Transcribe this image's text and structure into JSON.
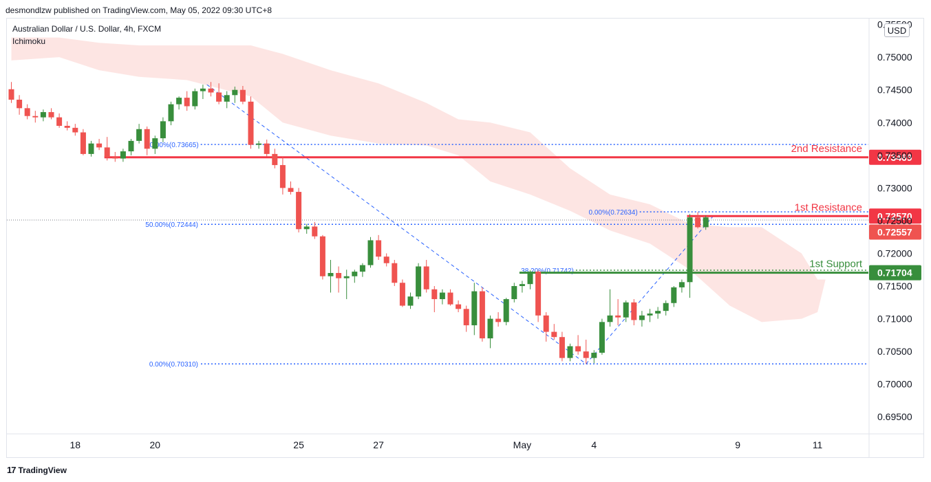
{
  "header": {
    "published": "desmondlzw published on TradingView.com, May 05, 2022 09:30 UTC+8",
    "symbol": "Australian Dollar / U.S. Dollar, 4h, FXCM",
    "indicator": "Ichimoku",
    "currency": "USD"
  },
  "footer": {
    "logo_mark": "17",
    "logo_text": "TradingView"
  },
  "colors": {
    "up": "#388e3c",
    "down": "#ef5350",
    "cloud": "#fde2e0",
    "resistance": "#f23645",
    "support": "#388e3c",
    "fib": "#2962ff",
    "text": "#131722"
  },
  "chart_data": {
    "type": "candlestick",
    "ylim": [
      0.6925,
      0.7558
    ],
    "y_ticks": [
      "0.75000",
      "0.74500",
      "0.74000",
      "0.73500",
      "0.73000",
      "0.72500",
      "0.72000",
      "0.71500",
      "0.71000",
      "0.70500",
      "0.70000",
      "0.69500"
    ],
    "x_ticks": [
      {
        "label": "18",
        "bar": 8
      },
      {
        "label": "20",
        "bar": 18
      },
      {
        "label": "25",
        "bar": 36
      },
      {
        "label": "27",
        "bar": 46
      },
      {
        "label": "May",
        "bar": 64
      },
      {
        "label": "4",
        "bar": 73
      },
      {
        "label": "9",
        "bar": 91
      },
      {
        "label": "11",
        "bar": 101
      }
    ],
    "candles": [
      {
        "o": 0.7451,
        "h": 0.7462,
        "l": 0.743,
        "c": 0.7435
      },
      {
        "o": 0.7435,
        "h": 0.7442,
        "l": 0.7412,
        "c": 0.7422
      },
      {
        "o": 0.7422,
        "h": 0.7428,
        "l": 0.7405,
        "c": 0.741
      },
      {
        "o": 0.741,
        "h": 0.7418,
        "l": 0.74,
        "c": 0.7408
      },
      {
        "o": 0.7408,
        "h": 0.742,
        "l": 0.7402,
        "c": 0.7416
      },
      {
        "o": 0.7416,
        "h": 0.7422,
        "l": 0.7405,
        "c": 0.7408
      },
      {
        "o": 0.7408,
        "h": 0.7414,
        "l": 0.7392,
        "c": 0.7395
      },
      {
        "o": 0.7395,
        "h": 0.7402,
        "l": 0.7388,
        "c": 0.7392
      },
      {
        "o": 0.7392,
        "h": 0.7398,
        "l": 0.738,
        "c": 0.7385
      },
      {
        "o": 0.7385,
        "h": 0.739,
        "l": 0.735,
        "c": 0.7352
      },
      {
        "o": 0.7352,
        "h": 0.7372,
        "l": 0.7348,
        "c": 0.7368
      },
      {
        "o": 0.7368,
        "h": 0.7375,
        "l": 0.7358,
        "c": 0.7362
      },
      {
        "o": 0.7362,
        "h": 0.7378,
        "l": 0.7342,
        "c": 0.7347
      },
      {
        "o": 0.7347,
        "h": 0.7355,
        "l": 0.734,
        "c": 0.7345
      },
      {
        "o": 0.7345,
        "h": 0.736,
        "l": 0.734,
        "c": 0.7356
      },
      {
        "o": 0.7356,
        "h": 0.7375,
        "l": 0.735,
        "c": 0.7372
      },
      {
        "o": 0.7372,
        "h": 0.7398,
        "l": 0.7368,
        "c": 0.739
      },
      {
        "o": 0.739,
        "h": 0.7394,
        "l": 0.735,
        "c": 0.736
      },
      {
        "o": 0.736,
        "h": 0.738,
        "l": 0.7352,
        "c": 0.7376
      },
      {
        "o": 0.7376,
        "h": 0.7408,
        "l": 0.737,
        "c": 0.7402
      },
      {
        "o": 0.7402,
        "h": 0.7432,
        "l": 0.7396,
        "c": 0.7428
      },
      {
        "o": 0.7428,
        "h": 0.744,
        "l": 0.742,
        "c": 0.7438
      },
      {
        "o": 0.7438,
        "h": 0.7448,
        "l": 0.7418,
        "c": 0.7425
      },
      {
        "o": 0.7425,
        "h": 0.7452,
        "l": 0.742,
        "c": 0.7448
      },
      {
        "o": 0.7448,
        "h": 0.7458,
        "l": 0.7436,
        "c": 0.7452
      },
      {
        "o": 0.7452,
        "h": 0.7462,
        "l": 0.744,
        "c": 0.7446
      },
      {
        "o": 0.7446,
        "h": 0.746,
        "l": 0.7428,
        "c": 0.7432
      },
      {
        "o": 0.7432,
        "h": 0.7448,
        "l": 0.7422,
        "c": 0.7442
      },
      {
        "o": 0.7442,
        "h": 0.7455,
        "l": 0.743,
        "c": 0.745
      },
      {
        "o": 0.745,
        "h": 0.7456,
        "l": 0.7428,
        "c": 0.7432
      },
      {
        "o": 0.7432,
        "h": 0.744,
        "l": 0.736,
        "c": 0.7366
      },
      {
        "o": 0.7366,
        "h": 0.7372,
        "l": 0.736,
        "c": 0.7368
      },
      {
        "o": 0.7368,
        "h": 0.7374,
        "l": 0.7348,
        "c": 0.7352
      },
      {
        "o": 0.7352,
        "h": 0.736,
        "l": 0.733,
        "c": 0.7335
      },
      {
        "o": 0.7335,
        "h": 0.7348,
        "l": 0.729,
        "c": 0.73
      },
      {
        "o": 0.73,
        "h": 0.731,
        "l": 0.729,
        "c": 0.7294
      },
      {
        "o": 0.7294,
        "h": 0.73,
        "l": 0.7232,
        "c": 0.7237
      },
      {
        "o": 0.7237,
        "h": 0.7245,
        "l": 0.723,
        "c": 0.7241
      },
      {
        "o": 0.7241,
        "h": 0.7248,
        "l": 0.7222,
        "c": 0.7226
      },
      {
        "o": 0.7226,
        "h": 0.7228,
        "l": 0.716,
        "c": 0.7165
      },
      {
        "o": 0.7165,
        "h": 0.719,
        "l": 0.714,
        "c": 0.717
      },
      {
        "o": 0.717,
        "h": 0.718,
        "l": 0.714,
        "c": 0.7162
      },
      {
        "o": 0.7162,
        "h": 0.7175,
        "l": 0.713,
        "c": 0.7165
      },
      {
        "o": 0.7165,
        "h": 0.7175,
        "l": 0.7155,
        "c": 0.7172
      },
      {
        "o": 0.7172,
        "h": 0.7185,
        "l": 0.7164,
        "c": 0.7182
      },
      {
        "o": 0.7182,
        "h": 0.7225,
        "l": 0.7178,
        "c": 0.722
      },
      {
        "o": 0.722,
        "h": 0.7228,
        "l": 0.719,
        "c": 0.7195
      },
      {
        "o": 0.7195,
        "h": 0.72,
        "l": 0.718,
        "c": 0.7185
      },
      {
        "o": 0.7185,
        "h": 0.719,
        "l": 0.715,
        "c": 0.7155
      },
      {
        "o": 0.7155,
        "h": 0.716,
        "l": 0.7118,
        "c": 0.712
      },
      {
        "o": 0.712,
        "h": 0.714,
        "l": 0.7115,
        "c": 0.7134
      },
      {
        "o": 0.7134,
        "h": 0.7185,
        "l": 0.713,
        "c": 0.718
      },
      {
        "o": 0.718,
        "h": 0.719,
        "l": 0.714,
        "c": 0.7145
      },
      {
        "o": 0.7145,
        "h": 0.715,
        "l": 0.711,
        "c": 0.713
      },
      {
        "o": 0.713,
        "h": 0.7145,
        "l": 0.7122,
        "c": 0.714
      },
      {
        "o": 0.714,
        "h": 0.7145,
        "l": 0.712,
        "c": 0.7122
      },
      {
        "o": 0.7122,
        "h": 0.7128,
        "l": 0.711,
        "c": 0.7115
      },
      {
        "o": 0.7115,
        "h": 0.712,
        "l": 0.708,
        "c": 0.709
      },
      {
        "o": 0.709,
        "h": 0.7155,
        "l": 0.7075,
        "c": 0.7142
      },
      {
        "o": 0.7142,
        "h": 0.7148,
        "l": 0.7065,
        "c": 0.707
      },
      {
        "o": 0.707,
        "h": 0.7105,
        "l": 0.7055,
        "c": 0.71
      },
      {
        "o": 0.71,
        "h": 0.711,
        "l": 0.7088,
        "c": 0.7095
      },
      {
        "o": 0.7095,
        "h": 0.7132,
        "l": 0.709,
        "c": 0.713
      },
      {
        "o": 0.713,
        "h": 0.7155,
        "l": 0.7125,
        "c": 0.715
      },
      {
        "o": 0.715,
        "h": 0.7158,
        "l": 0.714,
        "c": 0.7153
      },
      {
        "o": 0.7153,
        "h": 0.7174,
        "l": 0.7145,
        "c": 0.7172
      },
      {
        "o": 0.7172,
        "h": 0.7174,
        "l": 0.7095,
        "c": 0.7105
      },
      {
        "o": 0.7105,
        "h": 0.711,
        "l": 0.7065,
        "c": 0.708
      },
      {
        "o": 0.708,
        "h": 0.7092,
        "l": 0.7068,
        "c": 0.7072
      },
      {
        "o": 0.7072,
        "h": 0.708,
        "l": 0.7035,
        "c": 0.704
      },
      {
        "o": 0.704,
        "h": 0.7062,
        "l": 0.7035,
        "c": 0.7058
      },
      {
        "o": 0.7058,
        "h": 0.7075,
        "l": 0.7045,
        "c": 0.705
      },
      {
        "o": 0.705,
        "h": 0.7068,
        "l": 0.7031,
        "c": 0.704
      },
      {
        "o": 0.704,
        "h": 0.7052,
        "l": 0.7032,
        "c": 0.7048
      },
      {
        "o": 0.7048,
        "h": 0.71,
        "l": 0.7045,
        "c": 0.7095
      },
      {
        "o": 0.7095,
        "h": 0.7145,
        "l": 0.7088,
        "c": 0.7105
      },
      {
        "o": 0.7105,
        "h": 0.713,
        "l": 0.709,
        "c": 0.7102
      },
      {
        "o": 0.7102,
        "h": 0.7128,
        "l": 0.7095,
        "c": 0.7125
      },
      {
        "o": 0.7125,
        "h": 0.713,
        "l": 0.709,
        "c": 0.7098
      },
      {
        "o": 0.7098,
        "h": 0.7112,
        "l": 0.7088,
        "c": 0.7105
      },
      {
        "o": 0.7105,
        "h": 0.7115,
        "l": 0.7095,
        "c": 0.7108
      },
      {
        "o": 0.7108,
        "h": 0.7118,
        "l": 0.71,
        "c": 0.7112
      },
      {
        "o": 0.7112,
        "h": 0.7128,
        "l": 0.7105,
        "c": 0.7124
      },
      {
        "o": 0.7124,
        "h": 0.715,
        "l": 0.7118,
        "c": 0.7148
      },
      {
        "o": 0.7148,
        "h": 0.716,
        "l": 0.714,
        "c": 0.7156
      },
      {
        "o": 0.7156,
        "h": 0.726,
        "l": 0.7132,
        "c": 0.7255
      },
      {
        "o": 0.7255,
        "h": 0.7263,
        "l": 0.7238,
        "c": 0.724
      },
      {
        "o": 0.724,
        "h": 0.7258,
        "l": 0.7236,
        "c": 0.7255
      }
    ],
    "cloud": [
      {
        "bar": 0,
        "top": 0.753,
        "bottom": 0.7495
      },
      {
        "bar": 6,
        "top": 0.753,
        "bottom": 0.75
      },
      {
        "bar": 11,
        "top": 0.7522,
        "bottom": 0.748
      },
      {
        "bar": 16,
        "top": 0.7518,
        "bottom": 0.747
      },
      {
        "bar": 22,
        "top": 0.7518,
        "bottom": 0.7465
      },
      {
        "bar": 30,
        "top": 0.7518,
        "bottom": 0.744
      },
      {
        "bar": 34,
        "top": 0.7505,
        "bottom": 0.74
      },
      {
        "bar": 40,
        "top": 0.748,
        "bottom": 0.738
      },
      {
        "bar": 46,
        "top": 0.746,
        "bottom": 0.7368
      },
      {
        "bar": 52,
        "top": 0.743,
        "bottom": 0.7365
      },
      {
        "bar": 56,
        "top": 0.7405,
        "bottom": 0.735
      },
      {
        "bar": 60,
        "top": 0.74,
        "bottom": 0.731
      },
      {
        "bar": 65,
        "top": 0.7385,
        "bottom": 0.729
      },
      {
        "bar": 70,
        "top": 0.733,
        "bottom": 0.7265
      },
      {
        "bar": 75,
        "top": 0.729,
        "bottom": 0.7235
      },
      {
        "bar": 80,
        "top": 0.7275,
        "bottom": 0.7215
      },
      {
        "bar": 85,
        "top": 0.7245,
        "bottom": 0.7175
      },
      {
        "bar": 90,
        "top": 0.724,
        "bottom": 0.712
      },
      {
        "bar": 94,
        "top": 0.724,
        "bottom": 0.7095
      },
      {
        "bar": 99,
        "top": 0.72,
        "bottom": 0.71
      },
      {
        "bar": 101,
        "top": 0.716,
        "bottom": 0.711
      },
      {
        "bar": 102,
        "top": 0.716,
        "bottom": 0.716
      }
    ],
    "levels": [
      {
        "name": "2nd Resistance",
        "value": 0.73469,
        "price_label": "0.73469",
        "color": "#f23645",
        "from_bar": 12
      },
      {
        "name": "1st Resistance",
        "value": 0.7257,
        "price_label": "0.72570",
        "color": "#f23645",
        "from_bar": 85
      },
      {
        "name": "1st Support",
        "value": 0.71704,
        "price_label": "0.71704",
        "color": "#388e3c",
        "from_bar": 64
      }
    ],
    "current_price": {
      "value": 0.72557,
      "label": "0.72557",
      "line_value": 0.7251
    },
    "fib_levels": [
      {
        "label": "50.00%(0.73665)",
        "value": 0.73665,
        "from_bar": 17
      },
      {
        "label": "50.00%(0.72444)",
        "value": 0.72444,
        "from_bar": 0
      },
      {
        "label": "0.00%(0.70310)",
        "value": 0.7031,
        "from_bar": 0
      },
      {
        "label": "0.00%(0.72634)",
        "value": 0.72634,
        "from_bar": 72
      },
      {
        "label": "38.20%(0.71742)",
        "value": 0.71742,
        "from_bar": 64
      }
    ],
    "trend_lines": [
      {
        "from": {
          "bar": 24.5,
          "value": 0.7458
        },
        "to": {
          "bar": 72,
          "value": 0.7031
        }
      },
      {
        "from": {
          "bar": 72,
          "value": 0.7031
        },
        "to": {
          "bar": 88,
          "value": 0.7258
        }
      }
    ],
    "annotation_labels": {
      "top_right_axis": "0.75500"
    }
  }
}
